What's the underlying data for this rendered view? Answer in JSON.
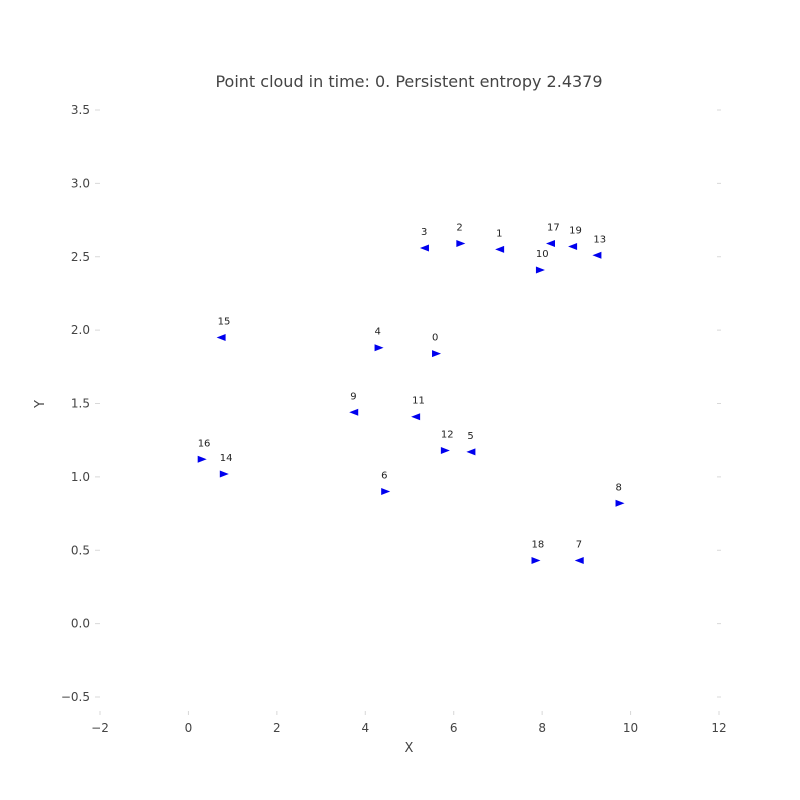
{
  "chart_data": {
    "type": "scatter",
    "title": "Point cloud in time: 0. Persistent entropy 2.4379",
    "xlabel": "X",
    "ylabel": "Y",
    "xlim": [
      -2,
      12
    ],
    "ylim": [
      -0.6,
      3.6
    ],
    "xticks": [
      -2,
      0,
      2,
      4,
      6,
      8,
      10,
      12
    ],
    "yticks": [
      -0.5,
      0.0,
      0.5,
      1.0,
      1.5,
      2.0,
      2.5,
      3.0,
      3.5
    ],
    "grid": false,
    "marker_color": "#0000ee",
    "points": [
      {
        "label": "0",
        "x": 5.6,
        "y": 1.84,
        "dir": "right"
      },
      {
        "label": "1",
        "x": 7.05,
        "y": 2.55,
        "dir": "left"
      },
      {
        "label": "2",
        "x": 6.15,
        "y": 2.59,
        "dir": "right"
      },
      {
        "label": "3",
        "x": 5.35,
        "y": 2.56,
        "dir": "left"
      },
      {
        "label": "4",
        "x": 4.3,
        "y": 1.88,
        "dir": "right"
      },
      {
        "label": "5",
        "x": 6.4,
        "y": 1.17,
        "dir": "left"
      },
      {
        "label": "6",
        "x": 4.45,
        "y": 0.9,
        "dir": "right"
      },
      {
        "label": "7",
        "x": 8.85,
        "y": 0.43,
        "dir": "left"
      },
      {
        "label": "8",
        "x": 9.75,
        "y": 0.82,
        "dir": "right"
      },
      {
        "label": "9",
        "x": 3.75,
        "y": 1.44,
        "dir": "left"
      },
      {
        "label": "10",
        "x": 7.95,
        "y": 2.41,
        "dir": "right"
      },
      {
        "label": "11",
        "x": 5.15,
        "y": 1.41,
        "dir": "left"
      },
      {
        "label": "12",
        "x": 5.8,
        "y": 1.18,
        "dir": "right"
      },
      {
        "label": "13",
        "x": 9.25,
        "y": 2.51,
        "dir": "left"
      },
      {
        "label": "14",
        "x": 0.8,
        "y": 1.02,
        "dir": "right"
      },
      {
        "label": "15",
        "x": 0.75,
        "y": 1.95,
        "dir": "left"
      },
      {
        "label": "16",
        "x": 0.3,
        "y": 1.12,
        "dir": "right"
      },
      {
        "label": "17",
        "x": 8.2,
        "y": 2.59,
        "dir": "left"
      },
      {
        "label": "18",
        "x": 7.85,
        "y": 0.43,
        "dir": "right"
      },
      {
        "label": "19",
        "x": 8.7,
        "y": 2.57,
        "dir": "left"
      }
    ]
  }
}
